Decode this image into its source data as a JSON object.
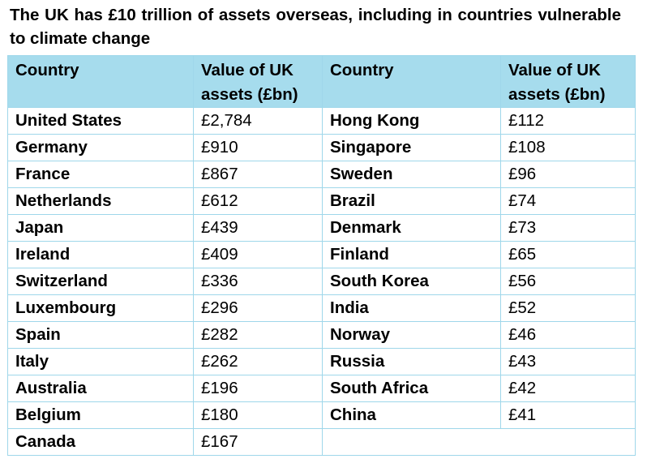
{
  "title": "The UK has £10 trillion of assets overseas, including in countries vulnerable to climate change",
  "table": {
    "headers": [
      "Country",
      "Value of UK assets (£bn)",
      "Country",
      "Value of UK assets (£bn)"
    ],
    "rows": [
      [
        "United States",
        "£2,784",
        "Hong Kong",
        "£112"
      ],
      [
        "Germany",
        "£910",
        "Singapore",
        "£108"
      ],
      [
        "France",
        "£867",
        "Sweden",
        "£96"
      ],
      [
        "Netherlands",
        "£612",
        "Brazil",
        "£74"
      ],
      [
        "Japan",
        "£439",
        "Denmark",
        "£73"
      ],
      [
        "Ireland",
        "£409",
        "Finland",
        "£65"
      ],
      [
        "Switzerland",
        "£336",
        "South Korea",
        "£56"
      ],
      [
        "Luxembourg",
        "£296",
        "India",
        "£52"
      ],
      [
        "Spain",
        "£282",
        "Norway",
        "£46"
      ],
      [
        "Italy",
        "£262",
        "Russia",
        "£43"
      ],
      [
        "Australia",
        "£196",
        "South Africa",
        "£42"
      ],
      [
        "Belgium",
        "£180",
        "China",
        "£41"
      ],
      [
        "Canada",
        "£167",
        "",
        ""
      ]
    ],
    "colors": {
      "header_bg": "#a6dced",
      "border": "#9fd7ea"
    }
  }
}
